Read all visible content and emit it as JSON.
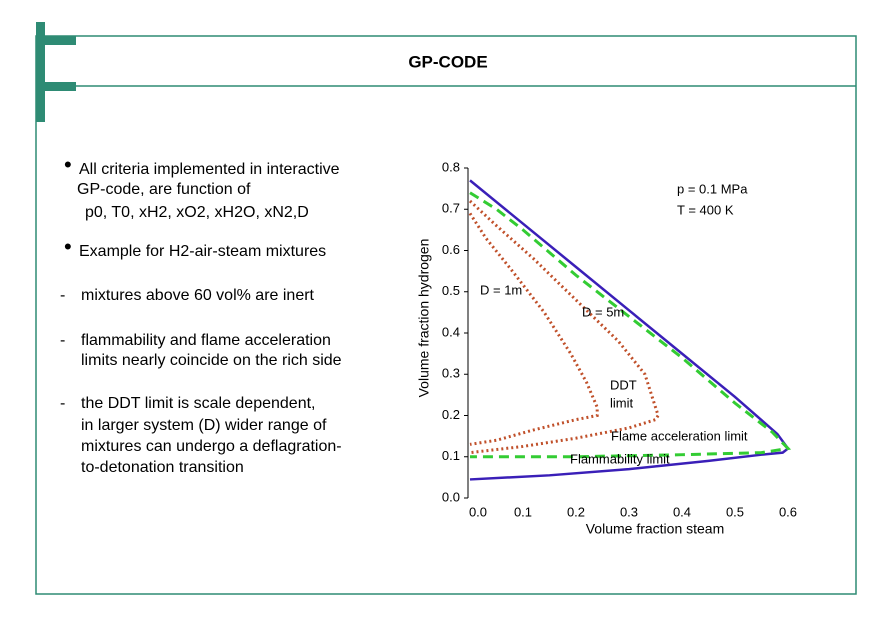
{
  "slide": {
    "title": "GP-CODE",
    "bullets": [
      {
        "marker": "•",
        "lines": [
          "All criteria implemented in interactive",
          "GP-code, are function of",
          "p0, T0, xH2, xO2, xH2O, xN2,D"
        ]
      },
      {
        "marker": "•",
        "lines": [
          "Example for H2-air-steam mixtures"
        ]
      },
      {
        "marker": "-",
        "lines": [
          "mixtures above 60 vol% are inert"
        ]
      },
      {
        "marker": "-",
        "lines": [
          "flammability and flame acceleration",
          "limits nearly coincide on the rich side"
        ]
      },
      {
        "marker": "-",
        "lines": [
          "the DDT limit is scale dependent,",
          "in larger system (D) wider range of",
          "mixtures can undergo a deflagration-",
          "to-detonation transition"
        ]
      }
    ]
  },
  "chart_data": {
    "type": "line",
    "x_label": "Volume fraction steam",
    "y_label": "Volume fraction hydrogen",
    "xlim": [
      0,
      0.6
    ],
    "xticks": [
      {
        "value": 0,
        "label": "0.0"
      },
      0.1,
      0.2,
      0.3,
      0.4,
      0.5,
      0.6
    ],
    "ylim": [
      0,
      0.8
    ],
    "yticks": [
      {
        "value": 0,
        "label": "0.0"
      },
      0.1,
      0.2,
      0.3,
      0.4,
      0.5,
      0.6,
      0.7,
      0.8
    ],
    "series": [
      {
        "name": "Flammability limit",
        "color": "#3a1fb8",
        "style": "solid",
        "x": [
          0,
          0.1,
          0.2,
          0.3,
          0.4,
          0.5,
          0.58,
          0.6,
          0.59,
          0.55,
          0.45,
          0.3,
          0.15,
          0
        ],
        "values": [
          0.77,
          0.665,
          0.56,
          0.455,
          0.35,
          0.245,
          0.155,
          0.12,
          0.11,
          0.105,
          0.09,
          0.07,
          0.055,
          0.045
        ]
      },
      {
        "name": "Flame acceleration limit",
        "color": "#33cc33",
        "style": "dashed",
        "x": [
          0,
          0.05,
          0.1,
          0.2,
          0.3,
          0.4,
          0.5,
          0.57,
          0.6,
          0.55,
          0.4,
          0.2,
          0
        ],
        "values": [
          0.74,
          0.7,
          0.65,
          0.54,
          0.44,
          0.34,
          0.23,
          0.16,
          0.12,
          0.11,
          0.105,
          0.1,
          0.1
        ]
      },
      {
        "name": "D = 1m",
        "color": "#c0502a",
        "style": "dotted",
        "x": [
          0,
          0.03,
          0.08,
          0.14,
          0.19,
          0.22,
          0.24,
          0.24,
          0.2,
          0.12,
          0.05,
          0
        ],
        "values": [
          0.69,
          0.63,
          0.55,
          0.45,
          0.35,
          0.28,
          0.22,
          0.2,
          0.19,
          0.165,
          0.14,
          0.13
        ]
      },
      {
        "name": "D = 5m",
        "color": "#c0502a",
        "style": "dotted",
        "x": [
          0,
          0.05,
          0.12,
          0.2,
          0.28,
          0.33,
          0.355,
          0.35,
          0.3,
          0.2,
          0.1,
          0
        ],
        "values": [
          0.72,
          0.66,
          0.58,
          0.48,
          0.38,
          0.3,
          0.2,
          0.19,
          0.17,
          0.145,
          0.125,
          0.11
        ]
      }
    ],
    "annotations": [
      "p = 0.1 MPa",
      "T = 400 K",
      "DDT",
      "limit"
    ]
  }
}
